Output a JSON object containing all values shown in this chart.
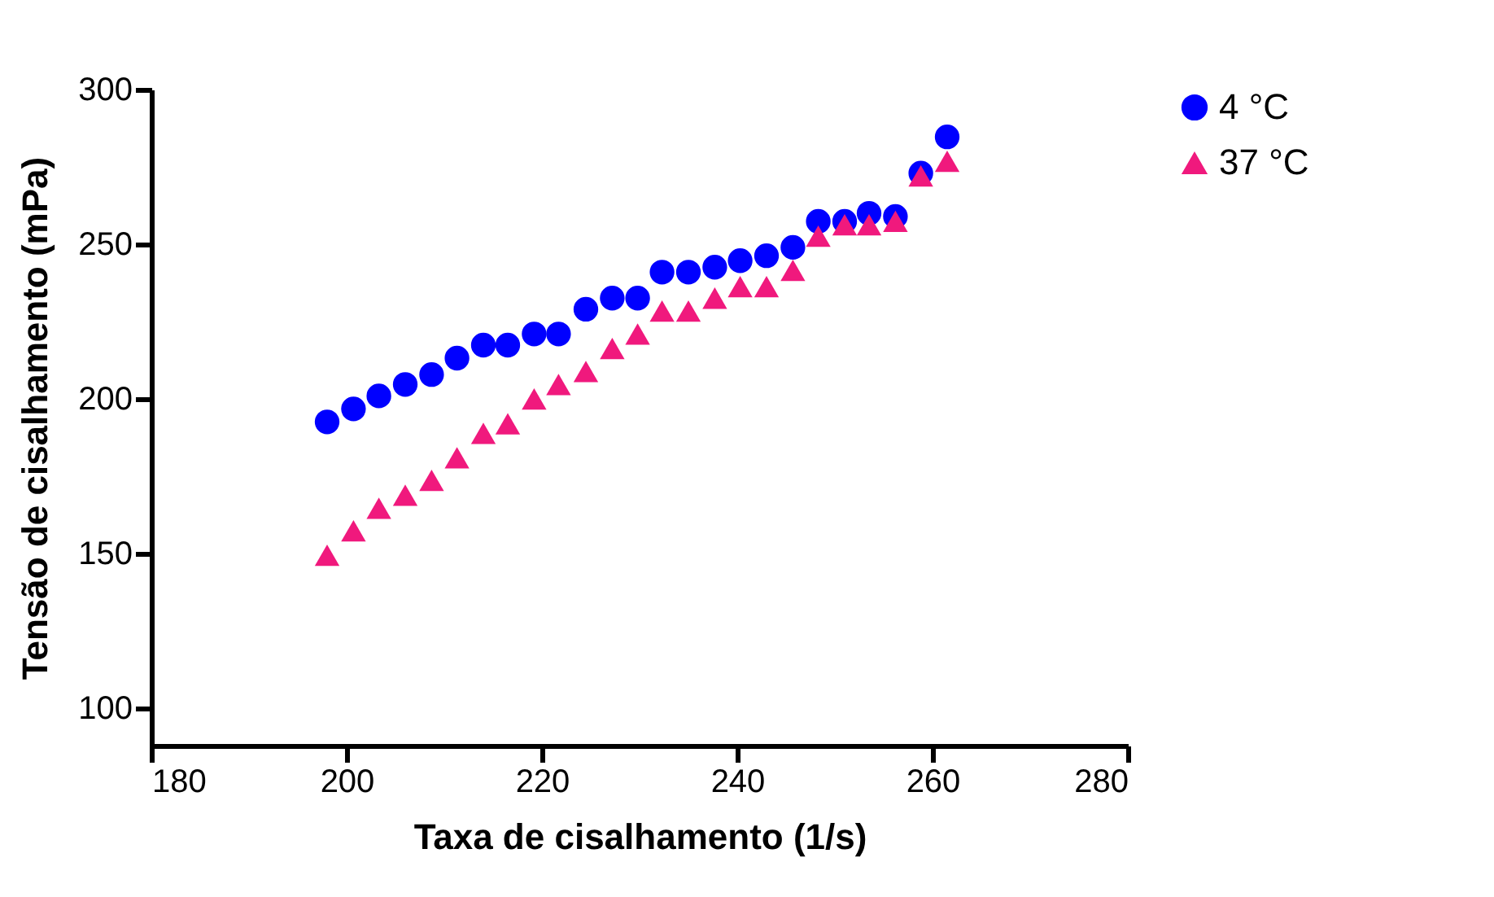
{
  "chart_data": {
    "type": "scatter",
    "xlabel": "Taxa de cisalhamento (1/s)",
    "ylabel": "Tensão de cisalhamento (mPa)",
    "x": [
      198,
      200.7,
      203.3,
      206,
      208.7,
      211.3,
      214,
      216.5,
      219.2,
      221.7,
      224.5,
      227.2,
      229.8,
      232.3,
      235,
      237.7,
      240.3,
      243,
      245.7,
      248.3,
      251,
      253.5,
      256.2,
      258.8,
      261.5
    ],
    "series": [
      {
        "name": "4 °C",
        "color": "#0000ff",
        "marker": "circle",
        "values": [
          192.6,
          196.8,
          201,
          204.7,
          207.9,
          213.2,
          217.4,
          217.4,
          221,
          221,
          229,
          232.6,
          232.6,
          241,
          241,
          242.6,
          244.7,
          246.3,
          249,
          257.4,
          257.4,
          260,
          259,
          273,
          284.7
        ]
      },
      {
        "name": "37 °C",
        "color": "#f0197d",
        "marker": "triangle",
        "values": [
          149.5,
          157.4,
          164.7,
          168.9,
          173.7,
          181,
          188.9,
          192,
          200,
          204.7,
          208.9,
          216.3,
          221,
          228.4,
          228.4,
          232.6,
          236.3,
          236.3,
          241.6,
          252.6,
          256.3,
          256.3,
          257.4,
          272.1,
          276.8
        ]
      }
    ],
    "xlim": [
      180,
      280
    ],
    "xticks": [
      180,
      200,
      220,
      240,
      260,
      280
    ],
    "ylim": [
      88,
      300
    ],
    "yticks": [
      100,
      150,
      200,
      250,
      300
    ],
    "grid": false,
    "legend": "top right"
  }
}
